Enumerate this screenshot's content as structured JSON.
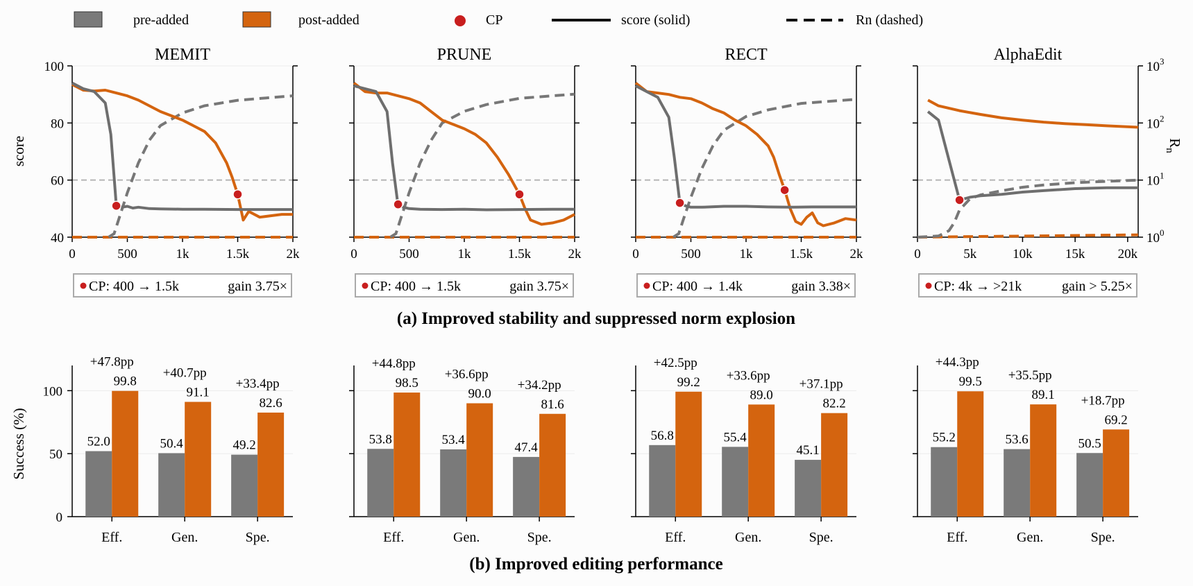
{
  "legend": {
    "pre": "pre-added",
    "post": "post-added",
    "cp": "CP",
    "score": "score (solid)",
    "rn": "Rn (dashed)"
  },
  "colors": {
    "pre": "#6e6e6e",
    "post": "#d4640f",
    "cp": "#c81e1e",
    "guide": "#b4b4b4"
  },
  "section_a_title": "(a) Improved stability and suppressed norm explosion",
  "section_b_title": "(b) Improved editing performance",
  "chart_data": [
    {
      "type": "line",
      "title": "MEMIT",
      "ylabel": "score",
      "xlim": [
        0,
        2000
      ],
      "ylim": [
        40,
        100
      ],
      "xticks": [
        0,
        500,
        1000,
        1500,
        2000
      ],
      "xticklabels": [
        "0",
        "500",
        "1k",
        "1.5k",
        "2k"
      ],
      "yticks": [
        40,
        60,
        80,
        100
      ],
      "threshold": 60,
      "pre_score": [
        [
          0,
          94
        ],
        [
          100,
          92
        ],
        [
          200,
          91
        ],
        [
          300,
          87
        ],
        [
          350,
          76
        ],
        [
          400,
          51
        ],
        [
          450,
          50.5
        ],
        [
          500,
          50.8
        ],
        [
          550,
          50.2
        ],
        [
          600,
          50.5
        ],
        [
          700,
          50
        ],
        [
          800,
          49.9
        ],
        [
          1000,
          49.8
        ],
        [
          1200,
          49.8
        ],
        [
          1500,
          49.7
        ],
        [
          1800,
          49.7
        ],
        [
          2000,
          49.7
        ]
      ],
      "post_score": [
        [
          0,
          93.5
        ],
        [
          100,
          91.5
        ],
        [
          200,
          91.2
        ],
        [
          300,
          91.5
        ],
        [
          400,
          90.5
        ],
        [
          500,
          89.5
        ],
        [
          600,
          88
        ],
        [
          700,
          86
        ],
        [
          800,
          84
        ],
        [
          900,
          82.5
        ],
        [
          1000,
          81
        ],
        [
          1100,
          79
        ],
        [
          1200,
          77
        ],
        [
          1300,
          73
        ],
        [
          1400,
          66
        ],
        [
          1450,
          61
        ],
        [
          1500,
          55
        ],
        [
          1550,
          46
        ],
        [
          1600,
          49
        ],
        [
          1700,
          47
        ],
        [
          1800,
          47.5
        ],
        [
          1900,
          48
        ],
        [
          2000,
          48
        ]
      ],
      "pre_rn": [
        [
          330,
          1
        ],
        [
          380,
          1.15
        ],
        [
          420,
          2
        ],
        [
          500,
          6
        ],
        [
          600,
          20
        ],
        [
          700,
          50
        ],
        [
          800,
          90
        ],
        [
          1000,
          150
        ],
        [
          1200,
          200
        ],
        [
          1500,
          250
        ],
        [
          2000,
          300
        ]
      ],
      "post_rn": [
        [
          0,
          1
        ],
        [
          2000,
          1
        ]
      ],
      "cp_pre": [
        400,
        51
      ],
      "cp_post": [
        1500,
        55
      ],
      "annotation": {
        "cp": "CP: 400 → 1.5k",
        "gain": "gain 3.75×"
      }
    },
    {
      "type": "line",
      "title": "PRUNE",
      "xlim": [
        0,
        2000
      ],
      "ylim": [
        40,
        100
      ],
      "xticks": [
        0,
        500,
        1000,
        1500,
        2000
      ],
      "xticklabels": [
        "0",
        "500",
        "1k",
        "1.5k",
        "2k"
      ],
      "yticks": [
        40,
        60,
        80,
        100
      ],
      "threshold": 60,
      "pre_score": [
        [
          0,
          93
        ],
        [
          100,
          92
        ],
        [
          200,
          91
        ],
        [
          300,
          84
        ],
        [
          350,
          66
        ],
        [
          400,
          51
        ],
        [
          450,
          50.5
        ],
        [
          500,
          50
        ],
        [
          600,
          49.8
        ],
        [
          800,
          49.7
        ],
        [
          1000,
          49.8
        ],
        [
          1200,
          49.6
        ],
        [
          1500,
          49.7
        ],
        [
          1800,
          49.8
        ],
        [
          2000,
          49.8
        ]
      ],
      "post_score": [
        [
          0,
          94
        ],
        [
          100,
          91
        ],
        [
          200,
          90.5
        ],
        [
          300,
          90.5
        ],
        [
          400,
          89.5
        ],
        [
          500,
          88.5
        ],
        [
          600,
          87
        ],
        [
          700,
          84
        ],
        [
          800,
          81
        ],
        [
          900,
          79.5
        ],
        [
          1000,
          78
        ],
        [
          1100,
          76
        ],
        [
          1200,
          73
        ],
        [
          1300,
          68
        ],
        [
          1400,
          62
        ],
        [
          1500,
          55
        ],
        [
          1550,
          50
        ],
        [
          1600,
          46
        ],
        [
          1700,
          44.5
        ],
        [
          1800,
          45
        ],
        [
          1900,
          46
        ],
        [
          2000,
          48
        ]
      ],
      "pre_rn": [
        [
          330,
          1
        ],
        [
          380,
          1.15
        ],
        [
          420,
          2
        ],
        [
          500,
          6
        ],
        [
          600,
          20
        ],
        [
          700,
          50
        ],
        [
          800,
          100
        ],
        [
          1000,
          160
        ],
        [
          1200,
          210
        ],
        [
          1500,
          270
        ],
        [
          2000,
          320
        ]
      ],
      "post_rn": [
        [
          0,
          1
        ],
        [
          2000,
          1
        ]
      ],
      "cp_pre": [
        400,
        51.5
      ],
      "cp_post": [
        1500,
        55
      ],
      "annotation": {
        "cp": "CP: 400 → 1.5k",
        "gain": "gain 3.75×"
      }
    },
    {
      "type": "line",
      "title": "RECT",
      "xlim": [
        0,
        2000
      ],
      "ylim": [
        40,
        100
      ],
      "xticks": [
        0,
        500,
        1000,
        1500,
        2000
      ],
      "xticklabels": [
        "0",
        "500",
        "1k",
        "1.5k",
        "2k"
      ],
      "yticks": [
        40,
        60,
        80,
        100
      ],
      "threshold": 60,
      "pre_score": [
        [
          0,
          93
        ],
        [
          100,
          91
        ],
        [
          200,
          89
        ],
        [
          300,
          82
        ],
        [
          350,
          68
        ],
        [
          400,
          52
        ],
        [
          450,
          51
        ],
        [
          500,
          50.5
        ],
        [
          600,
          50.5
        ],
        [
          800,
          50.8
        ],
        [
          1000,
          50.8
        ],
        [
          1200,
          50.6
        ],
        [
          1400,
          50.5
        ],
        [
          1600,
          50.6
        ],
        [
          2000,
          50.6
        ]
      ],
      "post_score": [
        [
          0,
          94
        ],
        [
          100,
          91
        ],
        [
          200,
          90.5
        ],
        [
          300,
          90
        ],
        [
          400,
          89
        ],
        [
          500,
          88.5
        ],
        [
          600,
          87
        ],
        [
          700,
          85
        ],
        [
          800,
          83.5
        ],
        [
          900,
          81
        ],
        [
          1000,
          79
        ],
        [
          1100,
          76
        ],
        [
          1200,
          72
        ],
        [
          1250,
          68
        ],
        [
          1300,
          62
        ],
        [
          1350,
          56.5
        ],
        [
          1400,
          50
        ],
        [
          1450,
          45.5
        ],
        [
          1500,
          44.5
        ],
        [
          1550,
          47
        ],
        [
          1600,
          48.5
        ],
        [
          1650,
          45
        ],
        [
          1700,
          44
        ],
        [
          1800,
          45
        ],
        [
          1900,
          46.5
        ],
        [
          2000,
          46
        ]
      ],
      "pre_rn": [
        [
          340,
          1
        ],
        [
          390,
          1.15
        ],
        [
          430,
          2
        ],
        [
          500,
          5
        ],
        [
          600,
          16
        ],
        [
          700,
          40
        ],
        [
          800,
          75
        ],
        [
          1000,
          130
        ],
        [
          1200,
          170
        ],
        [
          1500,
          220
        ],
        [
          2000,
          260
        ]
      ],
      "post_rn": [
        [
          0,
          1
        ],
        [
          2000,
          1
        ]
      ],
      "cp_pre": [
        400,
        52
      ],
      "cp_post": [
        1350,
        56.5
      ],
      "annotation": {
        "cp": "CP: 400 → 1.4k",
        "gain": "gain 3.38×"
      }
    },
    {
      "type": "line",
      "title": "AlphaEdit",
      "y2label": "R_n",
      "xlim": [
        0,
        21000
      ],
      "ylim": [
        40,
        100
      ],
      "y2lim_log": [
        1,
        1000
      ],
      "xticks": [
        0,
        5000,
        10000,
        15000,
        20000
      ],
      "xticklabels": [
        "0",
        "5k",
        "10k",
        "15k",
        "20k"
      ],
      "yticks": [
        40,
        60,
        80,
        100
      ],
      "y2ticks": [
        "10^0",
        "10^1",
        "10^2",
        "10^3"
      ],
      "threshold": 60,
      "pre_score": [
        [
          1000,
          84
        ],
        [
          2000,
          81
        ],
        [
          3000,
          67
        ],
        [
          4000,
          53
        ],
        [
          5000,
          54
        ],
        [
          6000,
          54.5
        ],
        [
          8000,
          55
        ],
        [
          10000,
          55.8
        ],
        [
          12000,
          56.3
        ],
        [
          15000,
          57
        ],
        [
          18000,
          57.3
        ],
        [
          21000,
          57.3
        ]
      ],
      "post_rn_logscore": [
        [
          1000,
          88
        ],
        [
          2000,
          86
        ],
        [
          4000,
          84.3
        ],
        [
          6000,
          83
        ],
        [
          8000,
          81.8
        ],
        [
          10000,
          81
        ],
        [
          12000,
          80.3
        ],
        [
          14000,
          79.8
        ],
        [
          16000,
          79.4
        ],
        [
          18000,
          79
        ],
        [
          21000,
          78.5
        ]
      ],
      "pre_rn": [
        [
          0,
          1
        ],
        [
          2000,
          1.05
        ],
        [
          3000,
          1.3
        ],
        [
          3500,
          1.8
        ],
        [
          4000,
          3
        ],
        [
          5000,
          4.7
        ],
        [
          6000,
          5.5
        ],
        [
          8000,
          6.5
        ],
        [
          10000,
          7.5
        ],
        [
          12000,
          8.2
        ],
        [
          15000,
          9
        ],
        [
          18000,
          9.5
        ],
        [
          21000,
          10
        ]
      ],
      "post_rn": [
        [
          0,
          1
        ],
        [
          21000,
          1.1
        ]
      ],
      "cp_pre": [
        4000,
        53
      ],
      "annotation": {
        "cp": "CP: 4k → >21k",
        "gain": "gain > 5.25×"
      }
    },
    {
      "type": "bar",
      "method": "MEMIT",
      "ylabel": "Success (%)",
      "ylim": [
        0,
        120
      ],
      "yticks": [
        0,
        50,
        100
      ],
      "categories": [
        "Eff.",
        "Gen.",
        "Spe."
      ],
      "series": [
        {
          "name": "pre-added",
          "values": [
            52.0,
            50.4,
            49.2
          ]
        },
        {
          "name": "post-added",
          "values": [
            99.8,
            91.1,
            82.6
          ]
        }
      ],
      "pre_labels": [
        "52.0",
        "50.4",
        "49.2"
      ],
      "post_labels": [
        "99.8",
        "91.1",
        "82.6"
      ],
      "gains": [
        "+47.8pp",
        "+40.7pp",
        "+33.4pp"
      ]
    },
    {
      "type": "bar",
      "method": "PRUNE",
      "ylim": [
        0,
        120
      ],
      "yticks": [
        0,
        50,
        100
      ],
      "categories": [
        "Eff.",
        "Gen.",
        "Spe."
      ],
      "series": [
        {
          "name": "pre-added",
          "values": [
            53.8,
            53.4,
            47.4
          ]
        },
        {
          "name": "post-added",
          "values": [
            98.5,
            90.0,
            81.6
          ]
        }
      ],
      "pre_labels": [
        "53.8",
        "53.4",
        "47.4"
      ],
      "post_labels": [
        "98.5",
        "90.0",
        "81.6"
      ],
      "gains": [
        "+44.8pp",
        "+36.6pp",
        "+34.2pp"
      ]
    },
    {
      "type": "bar",
      "method": "RECT",
      "ylim": [
        0,
        120
      ],
      "yticks": [
        0,
        50,
        100
      ],
      "categories": [
        "Eff.",
        "Gen.",
        "Spe."
      ],
      "series": [
        {
          "name": "pre-added",
          "values": [
            56.8,
            55.4,
            45.1
          ]
        },
        {
          "name": "post-added",
          "values": [
            99.2,
            89.0,
            82.2
          ]
        }
      ],
      "pre_labels": [
        "56.8",
        "55.4",
        "45.1"
      ],
      "post_labels": [
        "99.2",
        "89.0",
        "82.2"
      ],
      "gains": [
        "+42.5pp",
        "+33.6pp",
        "+37.1pp"
      ]
    },
    {
      "type": "bar",
      "method": "AlphaEdit",
      "ylim": [
        0,
        120
      ],
      "yticks": [
        0,
        50,
        100
      ],
      "categories": [
        "Eff.",
        "Gen.",
        "Spe."
      ],
      "series": [
        {
          "name": "pre-added",
          "values": [
            55.2,
            53.6,
            50.5
          ]
        },
        {
          "name": "post-added",
          "values": [
            99.5,
            89.1,
            69.2
          ]
        }
      ],
      "pre_labels": [
        "55.2",
        "53.6",
        "50.5"
      ],
      "post_labels": [
        "99.5",
        "89.1",
        "69.2"
      ],
      "gains": [
        "+44.3pp",
        "+35.5pp",
        "+18.7pp"
      ]
    }
  ]
}
